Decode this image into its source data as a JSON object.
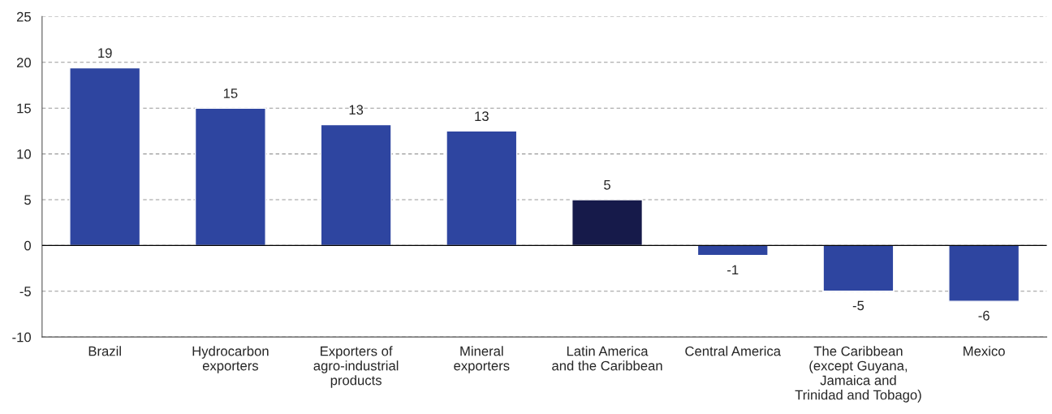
{
  "chart_data": {
    "type": "bar",
    "categories": [
      "Brazil",
      "Hydrocarbon\nexporters",
      "Exporters of\nagro-industrial\nproducts",
      "Mineral\nexporters",
      "Latin America\nand the Caribbean",
      "Central America",
      "The Caribbean\n(except Guyana,\nJamaica and\nTrinidad and Tobago)",
      "Mexico"
    ],
    "values": [
      19.4,
      15.0,
      13.2,
      12.5,
      5.0,
      -1.1,
      -5.0,
      -6.1
    ],
    "value_labels": [
      "19",
      "15",
      "13",
      "13",
      "5",
      "-1",
      "-5",
      "-6"
    ],
    "colors": [
      "#2e45a0",
      "#2e45a0",
      "#2e45a0",
      "#2e45a0",
      "#161a4a",
      "#2e45a0",
      "#2e45a0",
      "#2e45a0"
    ],
    "ylim": [
      -10,
      25
    ],
    "yticks": [
      -10,
      -5,
      0,
      5,
      10,
      15,
      20,
      25
    ],
    "grid": "y",
    "ref_lines": [
      {
        "axis": "y",
        "value": 0,
        "color": "#000000"
      }
    ]
  }
}
